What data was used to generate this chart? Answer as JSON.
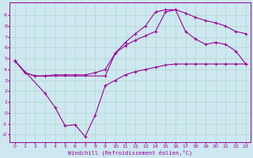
{
  "xlabel": "Windchill (Refroidissement éolien,°C)",
  "xlim": [
    -0.5,
    23.5
  ],
  "ylim": [
    -2.7,
    10.2
  ],
  "yticks": [
    -2,
    -1,
    0,
    1,
    2,
    3,
    4,
    5,
    6,
    7,
    8,
    9
  ],
  "xticks": [
    0,
    1,
    2,
    3,
    4,
    5,
    6,
    7,
    8,
    9,
    10,
    11,
    12,
    13,
    14,
    15,
    16,
    17,
    18,
    19,
    20,
    21,
    22,
    23
  ],
  "background_color": "#cde8f0",
  "grid_color": "#b0d8c8",
  "line_color": "#990099",
  "line1_x": [
    0,
    1,
    2,
    3,
    4,
    5,
    6,
    7,
    8,
    9,
    10,
    11,
    12,
    13,
    14,
    15,
    16,
    17,
    18,
    19,
    20,
    21,
    22,
    23
  ],
  "line1_y": [
    4.8,
    3.7,
    3.4,
    3.4,
    3.5,
    3.5,
    3.5,
    3.5,
    3.7,
    4.0,
    5.5,
    6.5,
    7.3,
    8.0,
    9.3,
    9.5,
    9.5,
    9.2,
    8.8,
    8.5,
    8.3,
    8.0,
    7.5,
    7.3
  ],
  "line2_x": [
    0,
    1,
    2,
    3,
    9,
    10,
    11,
    12,
    13,
    14,
    15,
    16,
    17,
    18,
    19,
    20,
    21,
    22,
    23
  ],
  "line2_y": [
    4.8,
    3.7,
    3.4,
    3.4,
    3.4,
    5.5,
    6.2,
    6.7,
    7.1,
    7.5,
    9.3,
    9.5,
    7.5,
    6.8,
    6.3,
    6.5,
    6.3,
    5.7,
    4.5
  ],
  "line3_x": [
    0,
    3,
    4,
    5,
    6,
    7,
    8,
    9,
    10,
    11,
    12,
    13,
    14,
    15,
    16,
    17,
    18,
    19,
    20,
    21,
    22,
    23
  ],
  "line3_y": [
    4.8,
    1.8,
    0.5,
    -1.2,
    -1.1,
    -2.2,
    -0.2,
    2.5,
    3.0,
    3.5,
    3.8,
    4.0,
    4.2,
    4.4,
    4.5,
    4.5,
    4.5,
    4.5,
    4.5,
    4.5,
    4.5,
    4.5
  ],
  "marker": "+"
}
